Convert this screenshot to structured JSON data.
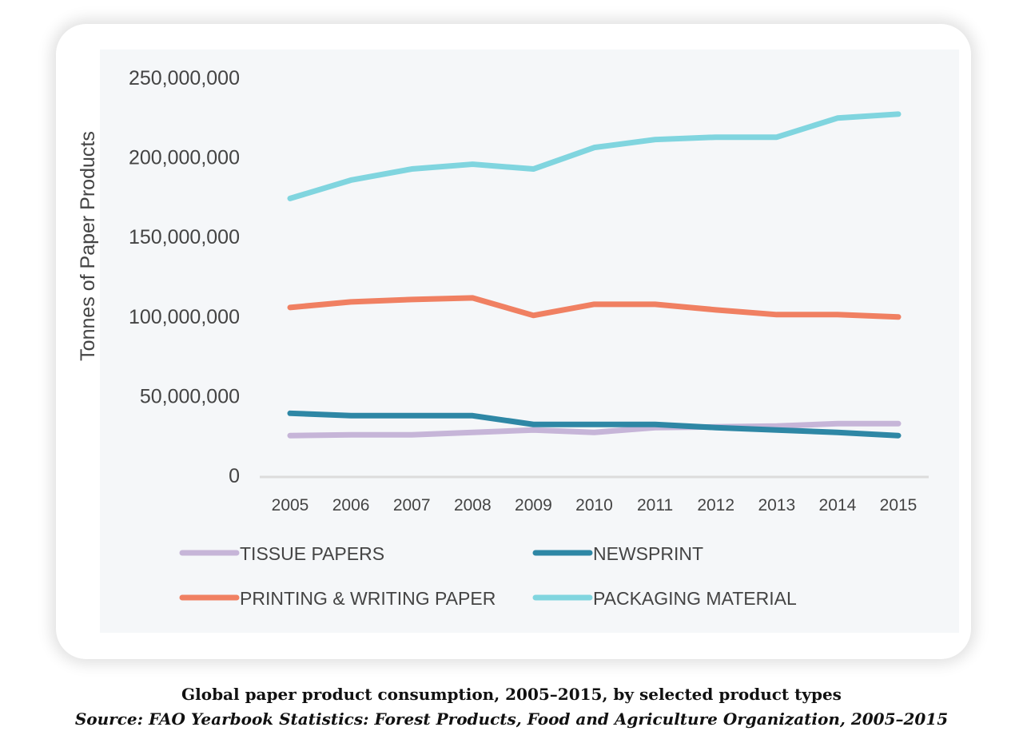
{
  "chart_data": {
    "type": "line",
    "title": "",
    "xlabel": "",
    "ylabel": "Tonnes of Paper Products",
    "x": [
      2005,
      2006,
      2007,
      2008,
      2009,
      2010,
      2011,
      2012,
      2013,
      2014,
      2015
    ],
    "ylim": [
      0,
      250000000
    ],
    "yticks": [
      0,
      50000000,
      100000000,
      150000000,
      200000000,
      250000000
    ],
    "ytick_labels": [
      "0",
      "50,000,000",
      "100,000,000",
      "150,000,000",
      "200,000,000",
      "250,000,000"
    ],
    "grid": false,
    "legend_position": "bottom",
    "series": [
      {
        "name": "TISSUE PAPERS",
        "color": "#c6b5d8",
        "values": [
          25000000,
          25500000,
          25500000,
          27000000,
          28500000,
          27000000,
          30000000,
          30500000,
          31000000,
          32500000,
          32500000
        ]
      },
      {
        "name": "NEWSPRINT",
        "color": "#2e87a5",
        "values": [
          39000000,
          37500000,
          37500000,
          37500000,
          32000000,
          32000000,
          32000000,
          30000000,
          28500000,
          27000000,
          25000000
        ]
      },
      {
        "name": "PRINTING & WRITING PAPER",
        "color": "#f08062",
        "values": [
          105500000,
          109000000,
          110500000,
          111500000,
          100500000,
          107500000,
          107500000,
          104000000,
          101000000,
          101000000,
          99500000
        ]
      },
      {
        "name": "PACKAGING MATERIAL",
        "color": "#80d5df",
        "values": [
          174000000,
          185500000,
          192500000,
          195500000,
          192500000,
          206000000,
          211000000,
          212500000,
          212500000,
          224500000,
          227000000
        ]
      }
    ]
  },
  "caption": {
    "title": "Global paper product consumption, 2005–2015, by selected product types",
    "source": "Source: FAO Yearbook Statistics: Forest Products, Food and Agriculture Organization, 2005–2015"
  }
}
